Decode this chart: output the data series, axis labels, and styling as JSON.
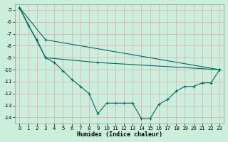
{
  "xlabel": "Humidex (Indice chaleur)",
  "ylabel": "",
  "bg_color": "#cceedd",
  "grid_color": "#ddaaaa",
  "line_color": "#006868",
  "xlim": [
    -0.5,
    23.5
  ],
  "ylim": [
    -14.5,
    -4.5
  ],
  "yticks": [
    -5,
    -6,
    -7,
    -8,
    -9,
    -10,
    -11,
    -12,
    -13,
    -14
  ],
  "xticks": [
    0,
    1,
    2,
    3,
    4,
    5,
    6,
    7,
    8,
    9,
    10,
    11,
    12,
    13,
    14,
    15,
    16,
    17,
    18,
    19,
    20,
    21,
    22,
    23
  ],
  "series1_x": [
    0,
    1,
    2,
    3,
    4,
    5,
    6,
    7,
    8,
    9,
    10,
    11,
    12,
    13,
    14,
    15,
    16,
    17,
    18,
    19,
    20,
    21,
    22,
    23
  ],
  "series1_y": [
    -4.8,
    -6.3,
    -7.5,
    -9.0,
    -9.4,
    -10.1,
    -10.8,
    -11.4,
    -12.0,
    -13.7,
    -12.8,
    -12.8,
    -12.8,
    -12.8,
    -14.1,
    -14.1,
    -12.9,
    -12.5,
    -11.8,
    -11.4,
    -11.4,
    -11.1,
    -11.1,
    -10.0
  ],
  "series2_x": [
    0,
    3,
    23
  ],
  "series2_y": [
    -4.8,
    -7.5,
    -10.0
  ],
  "series3_x": [
    0,
    3,
    9,
    23
  ],
  "series3_y": [
    -4.8,
    -9.0,
    -9.4,
    -10.0
  ],
  "marker": "+",
  "markersize": 3,
  "linewidth": 0.8,
  "axis_fontsize": 6,
  "tick_fontsize": 5
}
